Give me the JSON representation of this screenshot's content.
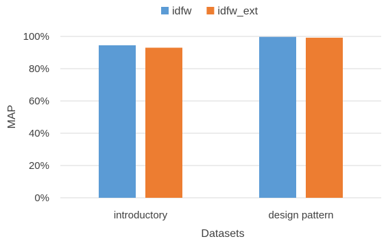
{
  "chart_data": {
    "type": "bar",
    "categories": [
      "introductory",
      "design pattern"
    ],
    "series": [
      {
        "name": "idfw",
        "color": "#5b9bd5",
        "values": [
          94.5,
          99.7
        ]
      },
      {
        "name": "idfw_ext",
        "color": "#ed7d31",
        "values": [
          93.0,
          99.2
        ]
      }
    ],
    "xlabel": "Datasets",
    "ylabel": "MAP",
    "ylim": [
      0,
      100
    ],
    "y_ticks": [
      0,
      20,
      40,
      60,
      80,
      100
    ],
    "y_tick_labels": [
      "0%",
      "20%",
      "40%",
      "60%",
      "80%",
      "100%"
    ],
    "grid": true,
    "legend_position": "top-center"
  }
}
